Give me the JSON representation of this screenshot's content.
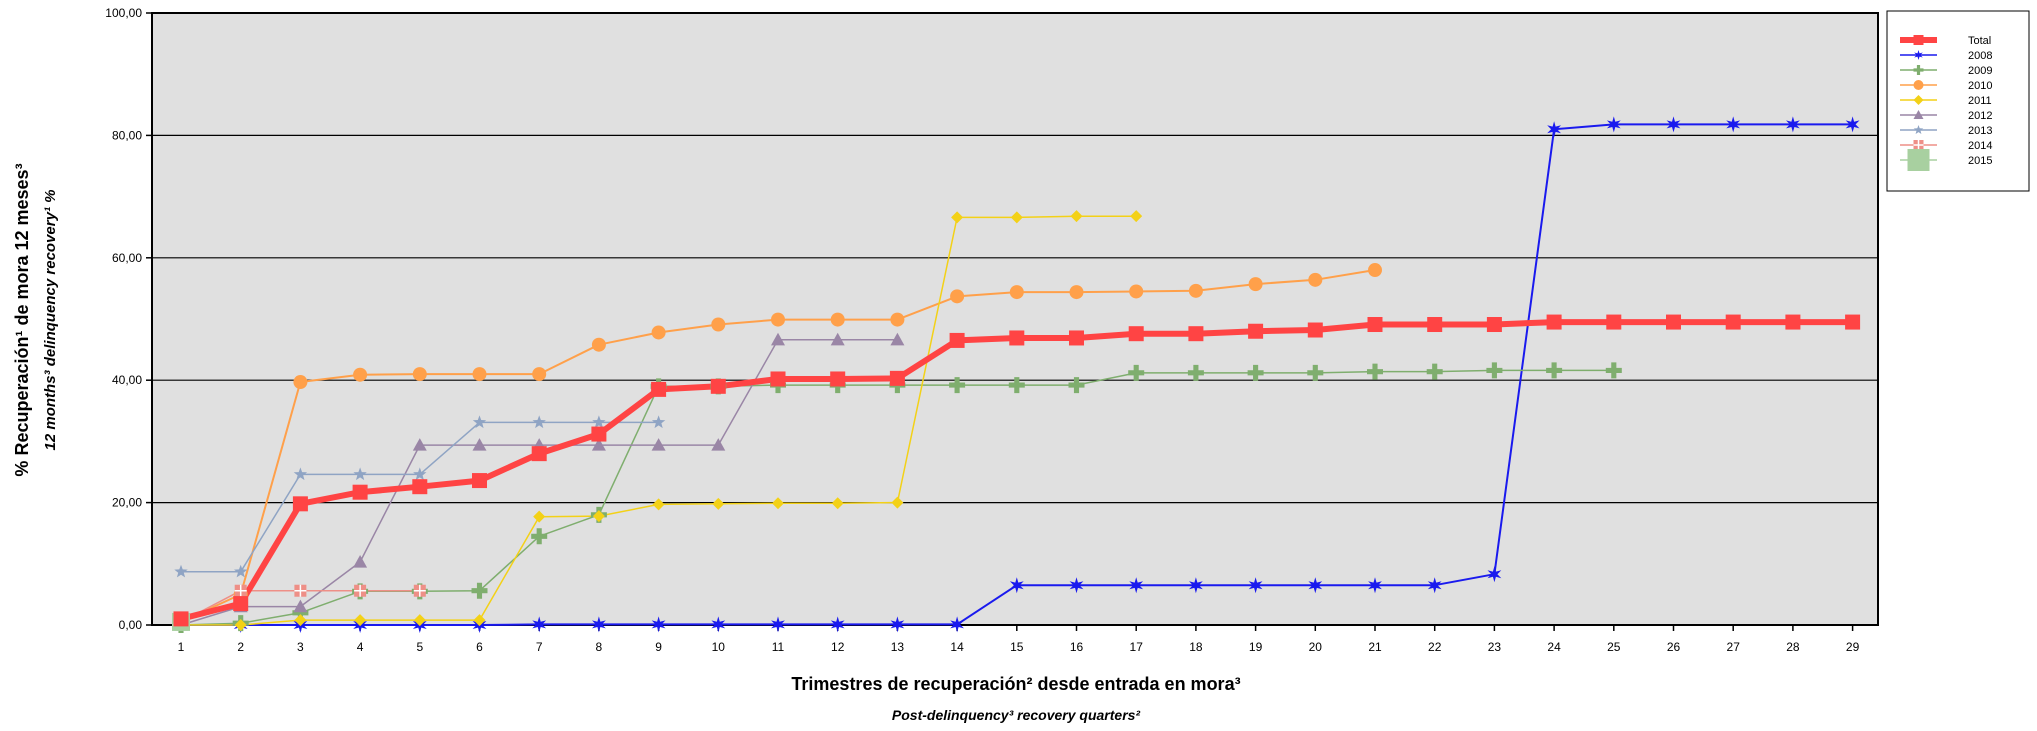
{
  "chart_data": {
    "type": "line",
    "xlabel": "Trimestres de recuperación² desde entrada en mora³",
    "xlabel_en": "Post-delinquency³ recovery quarters²",
    "ylabel": "% Recuperación¹ de mora 12 meses³",
    "ylabel_en": "12 months³ delinquency recovery¹ %",
    "ylim": [
      0,
      100
    ],
    "yticks": [
      0,
      20,
      40,
      60,
      80,
      100
    ],
    "ytick_labels": [
      "0,00",
      "20,00",
      "40,00",
      "60,00",
      "80,00",
      "100,00"
    ],
    "x": [
      1,
      2,
      3,
      4,
      5,
      6,
      7,
      8,
      9,
      10,
      11,
      12,
      13,
      14,
      15,
      16,
      17,
      18,
      19,
      20,
      21,
      22,
      23,
      24,
      25,
      26,
      27,
      28,
      29
    ],
    "grid": "horizontal",
    "legend_position": "right",
    "series": [
      {
        "name": "Total",
        "color": "#ff4444",
        "marker": "square",
        "width": 6,
        "markerSize": 15,
        "values": [
          1.0,
          3.5,
          19.8,
          21.7,
          22.6,
          23.6,
          28.0,
          31.2,
          38.5,
          39.0,
          40.2,
          40.2,
          40.3,
          46.5,
          46.9,
          46.9,
          47.6,
          47.6,
          48.0,
          48.2,
          49.1,
          49.1,
          49.1,
          49.5,
          49.5,
          49.5,
          49.5,
          49.5,
          49.5
        ]
      },
      {
        "name": "2008",
        "color": "#1a1aee",
        "marker": "star6",
        "width": 2,
        "markerSize": 16,
        "values": [
          0.0,
          0.0,
          0.0,
          0.0,
          0.0,
          0.0,
          0.1,
          0.1,
          0.1,
          0.1,
          0.1,
          0.1,
          0.1,
          0.1,
          6.5,
          6.5,
          6.5,
          6.5,
          6.5,
          6.5,
          6.5,
          6.5,
          8.3,
          81.0,
          81.8,
          81.8,
          81.8,
          81.8,
          81.8
        ]
      },
      {
        "name": "2009",
        "color": "#7fae6e",
        "marker": "plus",
        "width": 1.5,
        "markerSize": 16,
        "values": [
          0.0,
          0.3,
          2.0,
          5.5,
          5.5,
          5.6,
          14.5,
          18.0,
          39.0,
          39.0,
          39.2,
          39.2,
          39.2,
          39.2,
          39.2,
          39.2,
          41.2,
          41.2,
          41.2,
          41.2,
          41.4,
          41.4,
          41.6,
          41.6,
          41.6,
          null,
          null,
          null,
          null
        ]
      },
      {
        "name": "2010",
        "color": "#ffa04a",
        "marker": "circle",
        "width": 2,
        "markerSize": 14,
        "values": [
          0.5,
          5.0,
          39.7,
          40.9,
          41.0,
          41.0,
          41.0,
          45.8,
          47.8,
          49.1,
          49.9,
          49.9,
          49.9,
          53.7,
          54.4,
          54.4,
          54.5,
          54.6,
          55.7,
          56.4,
          58.0,
          null,
          null,
          null,
          null,
          null,
          null,
          null,
          null
        ]
      },
      {
        "name": "2011",
        "color": "#f3d117",
        "marker": "diamond",
        "width": 1.5,
        "markerSize": 12,
        "values": [
          0.0,
          0.0,
          0.8,
          0.8,
          0.8,
          0.8,
          17.7,
          17.8,
          19.7,
          19.8,
          19.9,
          19.9,
          20.0,
          66.6,
          66.6,
          66.8,
          66.8,
          null,
          null,
          null,
          null,
          null,
          null,
          null,
          null,
          null,
          null,
          null,
          null
        ]
      },
      {
        "name": "2012",
        "color": "#9a86a6",
        "marker": "triangle",
        "width": 1.5,
        "markerSize": 14,
        "values": [
          0.0,
          3.0,
          3.0,
          10.3,
          29.4,
          29.4,
          29.4,
          29.4,
          29.4,
          29.4,
          46.6,
          46.6,
          46.6,
          null,
          null,
          null,
          null,
          null,
          null,
          null,
          null,
          null,
          null,
          null,
          null,
          null,
          null,
          null,
          null
        ]
      },
      {
        "name": "2013",
        "color": "#8fa4c4",
        "marker": "star5",
        "width": 1.5,
        "markerSize": 14,
        "values": [
          8.7,
          8.7,
          24.6,
          24.6,
          24.6,
          33.1,
          33.1,
          33.1,
          33.1,
          null,
          null,
          null,
          null,
          null,
          null,
          null,
          null,
          null,
          null,
          null,
          null,
          null,
          null,
          null,
          null,
          null,
          null,
          null,
          null
        ]
      },
      {
        "name": "2014",
        "color": "#ee8f87",
        "marker": "squarecross",
        "width": 1.5,
        "markerSize": 12,
        "values": [
          0.5,
          5.6,
          5.6,
          5.6,
          5.6,
          null,
          null,
          null,
          null,
          null,
          null,
          null,
          null,
          null,
          null,
          null,
          null,
          null,
          null,
          null,
          null,
          null,
          null,
          null,
          null,
          null,
          null,
          null,
          null
        ]
      },
      {
        "name": "2015",
        "color": "#a8d0a0",
        "marker": "bigsquare",
        "width": 1.5,
        "markerSize": 18,
        "values": [
          0.5,
          null,
          null,
          null,
          null,
          null,
          null,
          null,
          null,
          null,
          null,
          null,
          null,
          null,
          null,
          null,
          null,
          null,
          null,
          null,
          null,
          null,
          null,
          null,
          null,
          null,
          null,
          null,
          null
        ]
      }
    ]
  }
}
